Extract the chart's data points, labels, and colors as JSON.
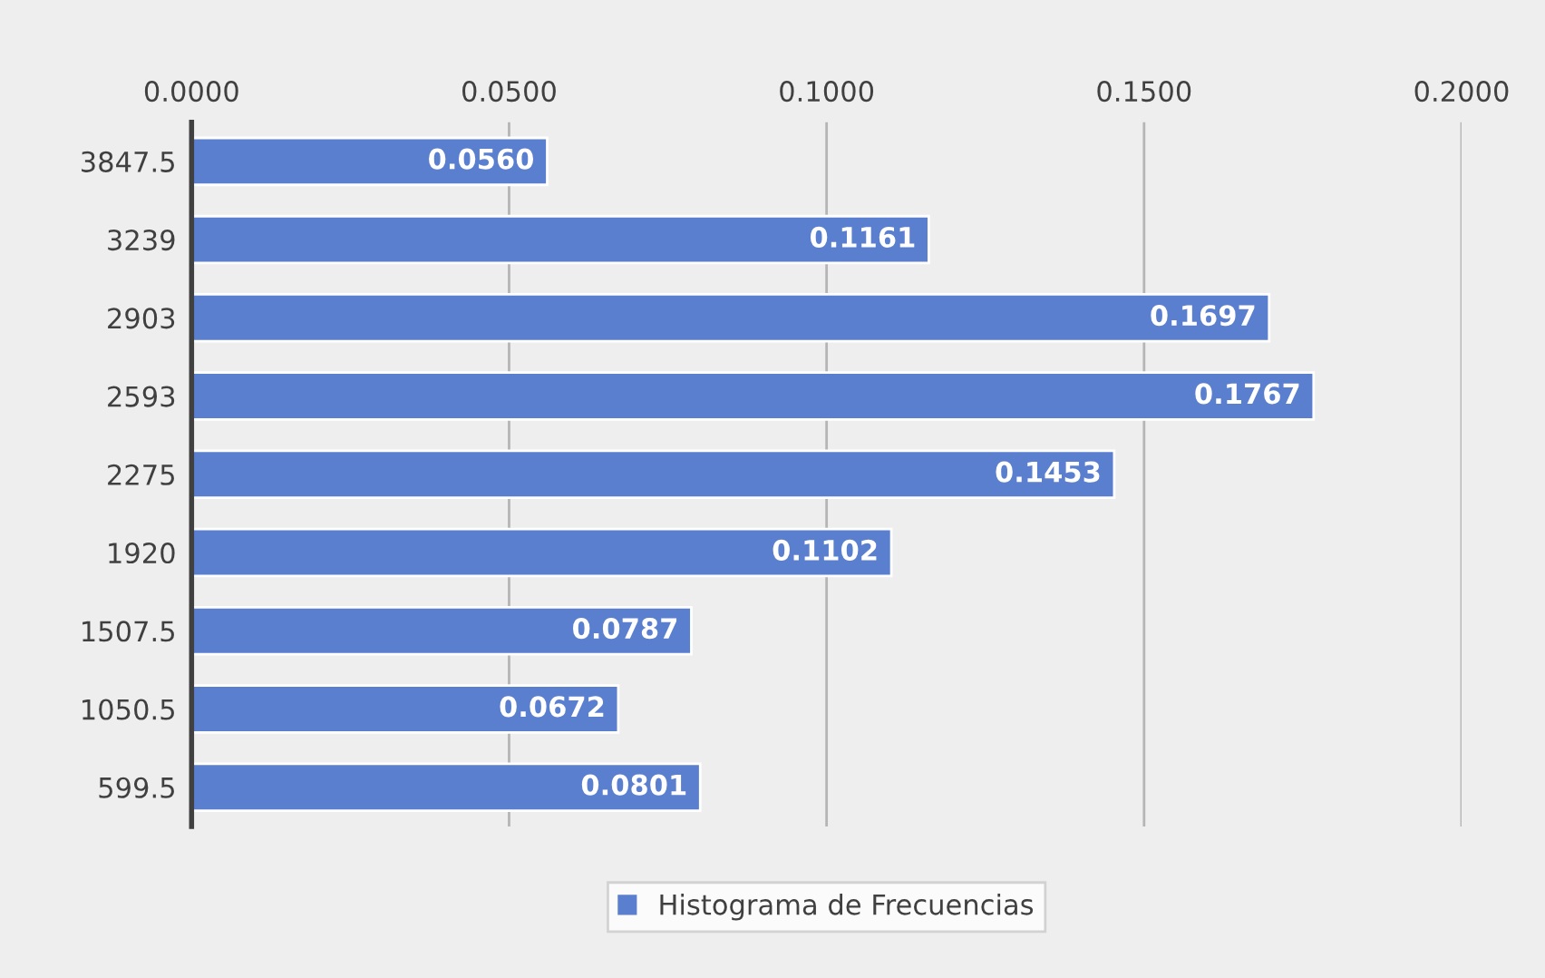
{
  "chart_data": {
    "type": "bar",
    "orientation": "horizontal",
    "categories": [
      "3847.5",
      "3239",
      "2903",
      "2593",
      "2275",
      "1920",
      "1507.5",
      "1050.5",
      "599.5"
    ],
    "series": [
      {
        "name": "Histograma de Frecuencias",
        "color": "#5b7fcf",
        "values": [
          0.056,
          0.1161,
          0.1697,
          0.1767,
          0.1453,
          0.1102,
          0.0787,
          0.0672,
          0.0801
        ],
        "value_labels": [
          "0.0560",
          "0.1161",
          "0.1697",
          "0.1767",
          "0.1453",
          "0.1102",
          "0.0787",
          "0.0672",
          "0.0801"
        ]
      }
    ],
    "xlim": [
      0,
      0.2
    ],
    "xticks": [
      {
        "value": 0,
        "label": "0.0000"
      },
      {
        "value": 0.05,
        "label": "0.0500"
      },
      {
        "value": 0.1,
        "label": "0.1000"
      },
      {
        "value": 0.15,
        "label": "0.1500"
      },
      {
        "value": 0.2,
        "label": "0.2000"
      }
    ],
    "grid": "x",
    "legend": "bottom"
  }
}
